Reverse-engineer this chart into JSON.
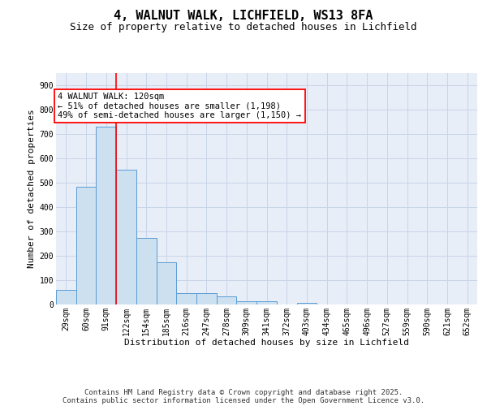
{
  "title1": "4, WALNUT WALK, LICHFIELD, WS13 8FA",
  "title2": "Size of property relative to detached houses in Lichfield",
  "xlabel": "Distribution of detached houses by size in Lichfield",
  "ylabel": "Number of detached properties",
  "bar_labels": [
    "29sqm",
    "60sqm",
    "91sqm",
    "122sqm",
    "154sqm",
    "185sqm",
    "216sqm",
    "247sqm",
    "278sqm",
    "309sqm",
    "341sqm",
    "372sqm",
    "403sqm",
    "434sqm",
    "465sqm",
    "496sqm",
    "527sqm",
    "559sqm",
    "590sqm",
    "621sqm",
    "652sqm"
  ],
  "bar_values": [
    60,
    484,
    730,
    553,
    274,
    174,
    48,
    48,
    33,
    15,
    12,
    0,
    8,
    0,
    0,
    0,
    0,
    0,
    0,
    0,
    0
  ],
  "bar_color": "#cde0f0",
  "bar_edge_color": "#5b9bd5",
  "grid_color": "#c8d4e8",
  "bg_color": "#e8eef8",
  "annotation_text": "4 WALNUT WALK: 120sqm\n← 51% of detached houses are smaller (1,198)\n49% of semi-detached houses are larger (1,150) →",
  "annotation_box_color": "white",
  "annotation_box_edge": "red",
  "ylim": [
    0,
    950
  ],
  "yticks": [
    0,
    100,
    200,
    300,
    400,
    500,
    600,
    700,
    800,
    900
  ],
  "footer1": "Contains HM Land Registry data © Crown copyright and database right 2025.",
  "footer2": "Contains public sector information licensed under the Open Government Licence v3.0.",
  "title_fontsize": 11,
  "subtitle_fontsize": 9,
  "axis_label_fontsize": 8,
  "tick_fontsize": 7,
  "annotation_fontsize": 7.5,
  "footer_fontsize": 6.5
}
